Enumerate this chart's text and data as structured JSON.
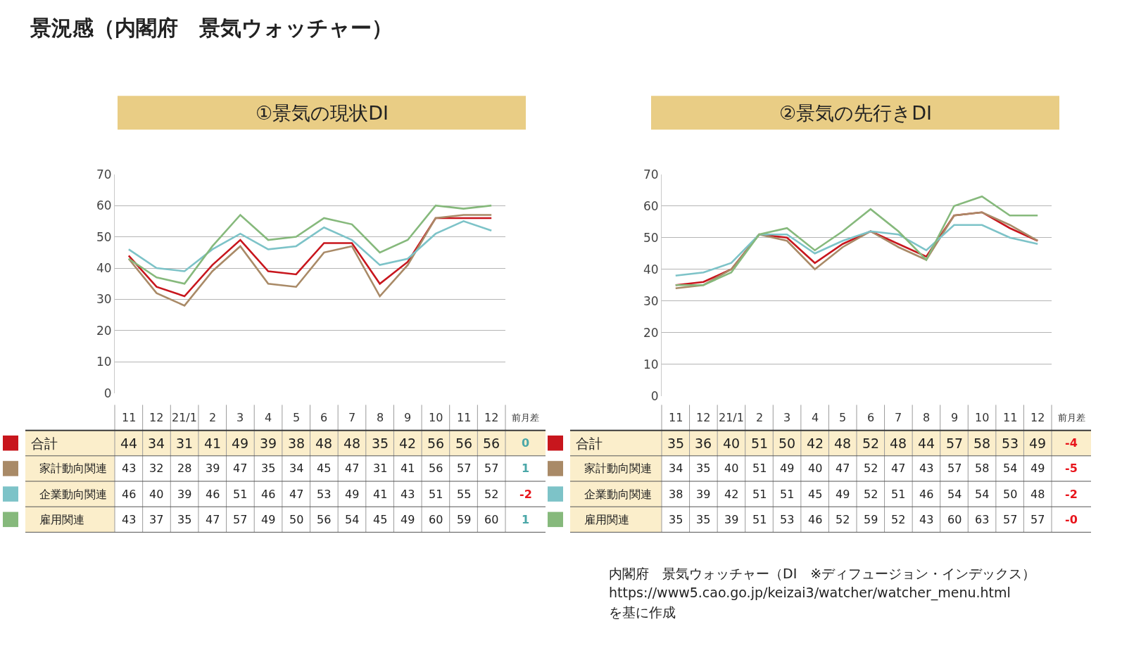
{
  "chart_data": [
    {
      "type": "line",
      "title": "景況感（内閣府　景気ウォッチャー）",
      "subtitle": "①景気の現状DI",
      "categories": [
        "11",
        "12",
        "21/1",
        "2",
        "3",
        "4",
        "5",
        "6",
        "7",
        "8",
        "9",
        "10",
        "11",
        "12"
      ],
      "series": [
        {
          "name": "合計",
          "color": "#c8161d",
          "values": [
            44,
            34,
            31,
            41,
            49,
            39,
            38,
            48,
            48,
            35,
            42,
            56,
            56,
            56
          ]
        },
        {
          "name": "家計動向関連",
          "color": "#a98a67",
          "values": [
            43,
            32,
            28,
            39,
            47,
            35,
            34,
            45,
            47,
            31,
            41,
            56,
            57,
            57
          ]
        },
        {
          "name": "企業動向関連",
          "color": "#7dc3c8",
          "values": [
            46,
            40,
            39,
            46,
            51,
            46,
            47,
            53,
            49,
            41,
            43,
            51,
            55,
            52
          ]
        },
        {
          "name": "雇用関連",
          "color": "#86b97c",
          "values": [
            43,
            37,
            35,
            47,
            57,
            49,
            50,
            56,
            54,
            45,
            49,
            60,
            59,
            60
          ]
        }
      ],
      "ylim": [
        0,
        70
      ],
      "yticks": [
        0,
        10,
        20,
        30,
        40,
        50,
        60,
        70
      ],
      "grid": "y",
      "legend": "left",
      "data_labels": true,
      "annotations": [
        "前月差",
        "0",
        "1",
        "-2",
        "1"
      ]
    },
    {
      "type": "line",
      "subtitle": "②景気の先行きDI",
      "categories": [
        "11",
        "12",
        "21/1",
        "2",
        "3",
        "4",
        "5",
        "6",
        "7",
        "8",
        "9",
        "10",
        "11",
        "12"
      ],
      "series": [
        {
          "name": "合計",
          "color": "#c8161d",
          "values": [
            35,
            36,
            40,
            51,
            50,
            42,
            48,
            52,
            48,
            44,
            57,
            58,
            53,
            49
          ]
        },
        {
          "name": "家計動向関連",
          "color": "#a98a67",
          "values": [
            34,
            35,
            40,
            51,
            49,
            40,
            47,
            52,
            47,
            43,
            57,
            58,
            54,
            49
          ]
        },
        {
          "name": "企業動向関連",
          "color": "#7dc3c8",
          "values": [
            38,
            39,
            42,
            51,
            51,
            45,
            49,
            52,
            51,
            46,
            54,
            54,
            50,
            48
          ]
        },
        {
          "name": "雇用関連",
          "color": "#86b97c",
          "values": [
            35,
            35,
            39,
            51,
            53,
            46,
            52,
            59,
            52,
            43,
            60,
            63,
            57,
            57
          ]
        }
      ],
      "ylim": [
        0,
        70
      ],
      "yticks": [
        0,
        10,
        20,
        30,
        40,
        50,
        60,
        70
      ],
      "grid": "y",
      "legend": "left",
      "data_labels": true,
      "annotations": [
        "前月差",
        "-4",
        "-5",
        "-2",
        "-0",
        "内閣府　景気ウォッチャー（DI　※ディフュージョン・インデックス）",
        "https://www5.cao.go.jp/keizai3/watcher/watcher_menu.html",
        "を基に作成"
      ]
    }
  ]
}
